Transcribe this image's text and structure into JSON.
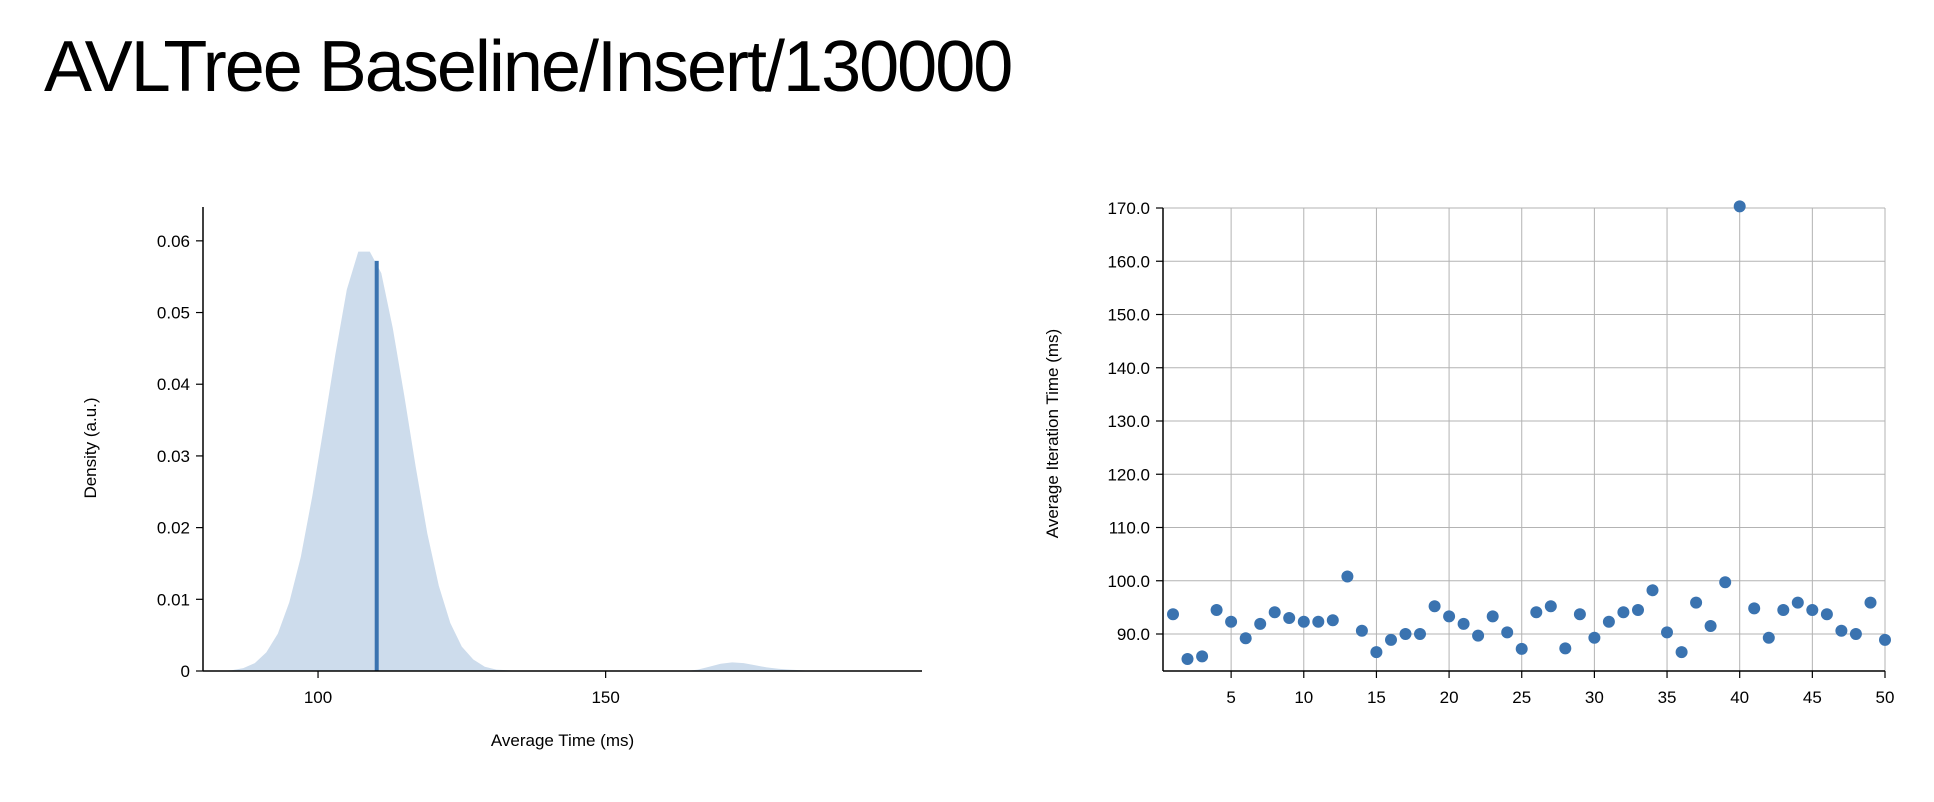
{
  "page": {
    "title": "AVLTree Baseline/Insert/130000"
  },
  "colors": {
    "fill": "#cddcec",
    "line": "#3a73b0",
    "grid": "#b3b3b3",
    "axis": "#000000"
  },
  "chart_data": [
    {
      "type": "area",
      "xlabel": "Average Time (ms)",
      "ylabel": "Density (a.u.)",
      "xlim": [
        80,
        205
      ],
      "ylim": [
        0,
        0.065
      ],
      "xticks": [
        100,
        150
      ],
      "yticks": [
        0,
        0.01,
        0.02,
        0.03,
        0.04,
        0.05,
        0.06
      ],
      "ytick_labels": [
        "0",
        "0.01",
        "0.02",
        "0.03",
        "0.04",
        "0.05",
        "0.06"
      ],
      "density": {
        "x": [
          83,
          85,
          87,
          89,
          91,
          93,
          95,
          97,
          99,
          101,
          103,
          105,
          107,
          109,
          111,
          113,
          115,
          117,
          119,
          121,
          123,
          125,
          127,
          129,
          131,
          133,
          135,
          140,
          145,
          150,
          155,
          160,
          164,
          166,
          168,
          170,
          172,
          174,
          176,
          178,
          180,
          182,
          184,
          186,
          188
        ],
        "y": [
          0,
          0.0001,
          0.0004,
          0.0011,
          0.0026,
          0.0052,
          0.0096,
          0.0159,
          0.0244,
          0.0341,
          0.0441,
          0.0532,
          0.0585,
          0.0585,
          0.0555,
          0.0478,
          0.0384,
          0.0284,
          0.0192,
          0.0119,
          0.0067,
          0.0034,
          0.0016,
          0.0006,
          0.0002,
          0.0001,
          0,
          0,
          0,
          0,
          0,
          0,
          0,
          0.0002,
          0.0006,
          0.001,
          0.0012,
          0.0011,
          0.0008,
          0.0005,
          0.0003,
          0.0002,
          0.0001,
          0,
          0
        ]
      },
      "mean_line": {
        "x": 110.2,
        "y": 0.0572
      }
    },
    {
      "type": "scatter",
      "xlabel": "",
      "ylabel": "Average Iteration Time (ms)",
      "xlim": [
        1,
        50
      ],
      "ylim": [
        85,
        170
      ],
      "xticks": [
        5,
        10,
        15,
        20,
        25,
        30,
        35,
        40,
        45,
        50
      ],
      "yticks": [
        90,
        100,
        110,
        120,
        130,
        140,
        150,
        160,
        170
      ],
      "ytick_labels": [
        "90.0",
        "100.0",
        "110.0",
        "120.0",
        "130.0",
        "140.0",
        "150.0",
        "160.0",
        "170.0"
      ],
      "x": [
        1,
        2,
        3,
        4,
        5,
        6,
        7,
        8,
        9,
        10,
        11,
        12,
        13,
        14,
        15,
        16,
        17,
        18,
        19,
        20,
        21,
        22,
        23,
        24,
        25,
        26,
        27,
        28,
        29,
        30,
        31,
        32,
        33,
        34,
        35,
        36,
        37,
        38,
        39,
        40,
        41,
        42,
        43,
        44,
        45,
        46,
        47,
        48,
        49,
        50
      ],
      "y": [
        93.7,
        85.3,
        85.8,
        94.5,
        92.3,
        89.2,
        91.9,
        94.1,
        93.0,
        92.3,
        92.3,
        92.6,
        100.8,
        90.6,
        86.6,
        88.9,
        90.0,
        90.0,
        95.2,
        93.3,
        91.9,
        89.7,
        93.3,
        90.3,
        87.2,
        94.1,
        95.2,
        87.3,
        93.7,
        89.3,
        92.3,
        94.1,
        94.5,
        98.2,
        90.3,
        86.6,
        95.9,
        91.5,
        99.7,
        170.3,
        94.8,
        89.3,
        94.5,
        95.9,
        94.5,
        93.7,
        90.6,
        90.0,
        95.9,
        88.9
      ]
    }
  ]
}
